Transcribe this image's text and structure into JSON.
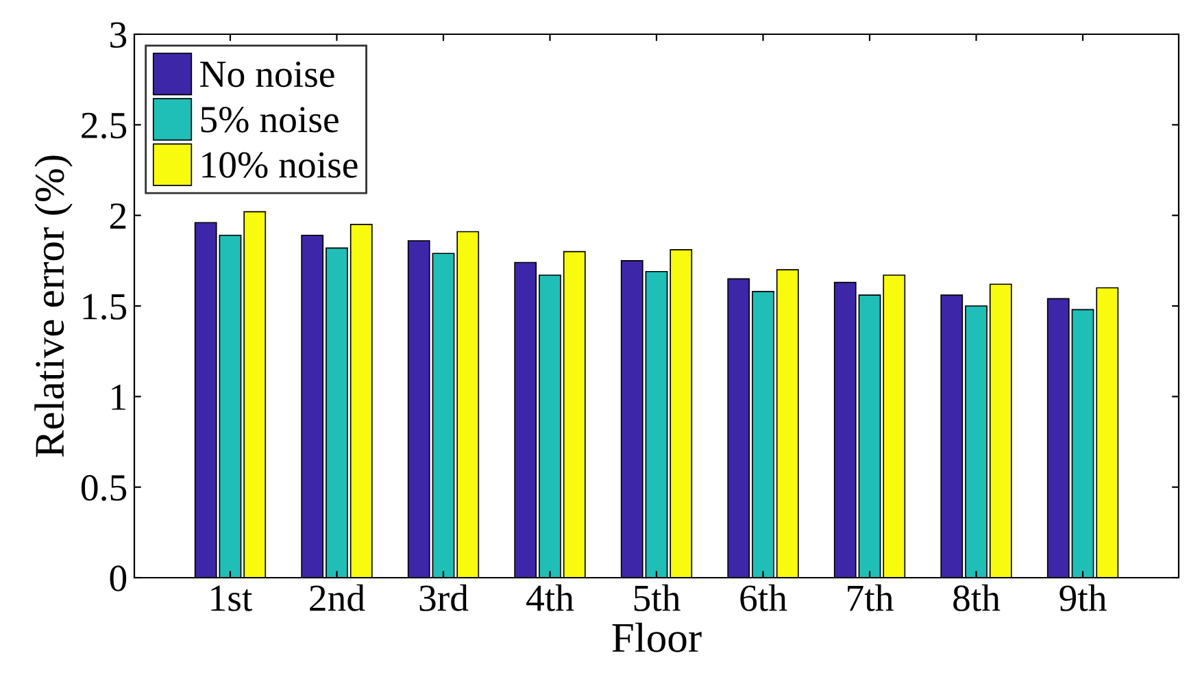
{
  "chart_data": {
    "type": "bar",
    "xlabel": "Floor",
    "ylabel": "Relative error (%)",
    "categories": [
      "1st",
      "2nd",
      "3rd",
      "4th",
      "5th",
      "6th",
      "7th",
      "8th",
      "9th"
    ],
    "series": [
      {
        "name": "No noise",
        "color": "#3e26a8",
        "values": [
          1.96,
          1.89,
          1.86,
          1.74,
          1.75,
          1.65,
          1.63,
          1.56,
          1.54
        ]
      },
      {
        "name": "5% noise",
        "color": "#1fbfb8",
        "values": [
          1.89,
          1.82,
          1.79,
          1.67,
          1.69,
          1.58,
          1.56,
          1.5,
          1.48
        ]
      },
      {
        "name": "10% noise",
        "color": "#f9fb0e",
        "values": [
          2.02,
          1.95,
          1.91,
          1.8,
          1.81,
          1.7,
          1.67,
          1.62,
          1.6
        ]
      }
    ],
    "ylim": [
      0,
      3
    ],
    "yticks": [
      0,
      0.5,
      1,
      1.5,
      2,
      2.5,
      3
    ],
    "grid": false,
    "legend": "top left"
  }
}
